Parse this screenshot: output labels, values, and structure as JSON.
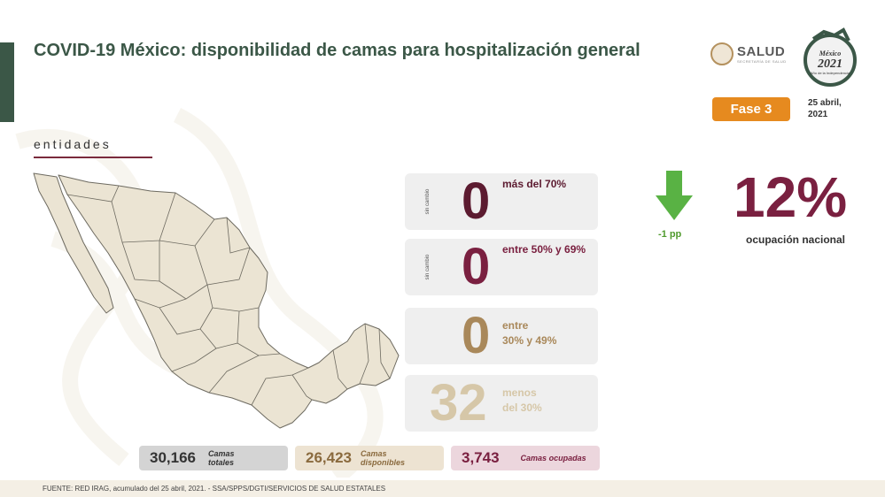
{
  "title": "COVID-19 México: disponibilidad de camas para hospitalización general",
  "logo": {
    "name": "SALUD",
    "subtitle": "SECRETARÍA DE SALUD"
  },
  "logo2021": {
    "line1": "México",
    "line2": "2021",
    "line3": "Año de la Independencia"
  },
  "phase": "Fase 3",
  "date": {
    "line1": "25 abril,",
    "line2": "2021"
  },
  "section_label": "entidades",
  "cards": [
    {
      "side": "sin cambio",
      "count": "0",
      "label1": "más del 70%",
      "label2": "",
      "color": "#5c1b30"
    },
    {
      "side": "sin cambio",
      "count": "0",
      "label1": "entre 50% y 69%",
      "label2": "",
      "color": "#7a2040"
    },
    {
      "side": "",
      "count": "0",
      "label1": "entre",
      "label2": "30% y 49%",
      "color": "#a9885a"
    },
    {
      "side": "",
      "count": "32",
      "label1": "menos",
      "label2": "del 30%",
      "color": "#d6c7a8"
    }
  ],
  "change": {
    "value": "-1 pp",
    "arrow_color": "#59b244",
    "direction": "down-arrow-icon"
  },
  "national": {
    "percent": "12%",
    "label": "ocupación nacional"
  },
  "stats": [
    {
      "value": "30,166",
      "label1": "Camas",
      "label2": "totales",
      "bg": "#d4d4d4",
      "color": "#333333"
    },
    {
      "value": "26,423",
      "label1": "Camas",
      "label2": "disponibles",
      "bg": "#ede3d2",
      "color": "#8a6a3e"
    },
    {
      "value": "3,743",
      "label1": "Camas ocupadas",
      "label2": "",
      "bg": "#ecd6dd",
      "color": "#7a2040"
    }
  ],
  "footer": "FUENTE: RED IRAG, acumulado del 25 abril, 2021.  - SSA/SPPS/DGTI/SERVICIOS DE SALUD ESTATALES",
  "colors": {
    "accent_green": "#3b5747",
    "phase_orange": "#e68a1f",
    "map_fill": "#ebe4d3",
    "map_stroke": "#6d6a60"
  }
}
